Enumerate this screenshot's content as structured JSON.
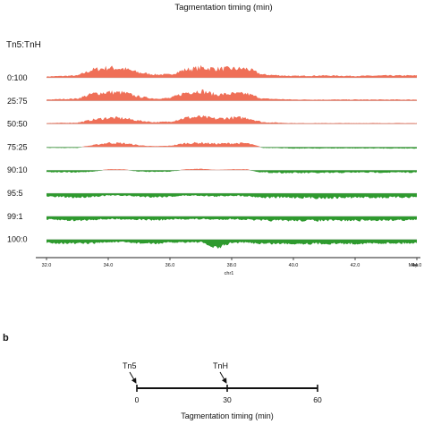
{
  "panel_a": {
    "header": "Tagmentation timing (min)",
    "ratio_label": "Tn5:TnH",
    "chromosome": "chr1",
    "axis_unit": "Mbp",
    "tick_labels": [
      "32.0",
      "34.0",
      "36.0",
      "38.0",
      "40.0",
      "42.0",
      "44.0"
    ]
  },
  "panel_b": {
    "panel_letter": "b",
    "xlabel": "Tagmentation timing (min)",
    "ticks": [
      "0",
      "30",
      "60"
    ],
    "events": [
      {
        "label": "Tn5",
        "time": 0
      },
      {
        "label": "TnH",
        "time": 30
      }
    ]
  },
  "colors": {
    "positive": "#ef6f57",
    "negative": "#2e9a2e",
    "axis": "#222222"
  },
  "chart_data": [
    {
      "type": "area",
      "title": "",
      "xlabel": "chr1",
      "x_unit": "Mbp",
      "xlim": [
        32.0,
        44.0
      ],
      "xticks": [
        32.0,
        34.0,
        36.0,
        38.0,
        40.0,
        42.0,
        44.0
      ],
      "x": [
        32.0,
        33.0,
        33.5,
        34.0,
        34.5,
        35.0,
        35.5,
        36.0,
        36.5,
        37.0,
        37.5,
        38.0,
        38.5,
        39.0,
        40.0,
        41.0,
        42.0,
        43.0,
        44.0
      ],
      "series": [
        {
          "name": "0:100",
          "values": [
            0.1,
            0.2,
            0.8,
            1.0,
            0.9,
            0.5,
            0.3,
            0.3,
            0.8,
            1.0,
            0.9,
            0.9,
            0.9,
            0.3,
            0.15,
            0.2,
            0.15,
            0.2,
            0.2
          ]
        },
        {
          "name": "25:75",
          "values": [
            0.1,
            0.2,
            0.7,
            0.85,
            0.8,
            0.4,
            0.2,
            0.25,
            0.8,
            1.0,
            0.6,
            0.7,
            0.7,
            0.2,
            0.1,
            0.1,
            0.1,
            0.1,
            0.1
          ]
        },
        {
          "name": "50:50",
          "values": [
            0.05,
            0.1,
            0.4,
            0.6,
            0.55,
            0.3,
            0.15,
            0.2,
            0.6,
            0.7,
            0.5,
            0.6,
            0.6,
            0.15,
            0.05,
            0.05,
            0.05,
            0.05,
            0.05
          ]
        },
        {
          "name": "75:25",
          "values": [
            -0.05,
            -0.05,
            0.15,
            0.4,
            0.35,
            0.15,
            0.05,
            0.1,
            0.35,
            0.4,
            0.3,
            0.35,
            0.35,
            -0.05,
            -0.1,
            -0.1,
            -0.1,
            -0.1,
            -0.1
          ]
        },
        {
          "name": "90:10",
          "values": [
            -0.15,
            -0.2,
            -0.1,
            0.05,
            0.05,
            -0.1,
            -0.15,
            -0.1,
            0.05,
            0.1,
            0.0,
            0.05,
            0.05,
            -0.2,
            -0.25,
            -0.25,
            -0.2,
            -0.2,
            -0.2
          ]
        },
        {
          "name": "95:5",
          "values": [
            -0.3,
            -0.4,
            -0.3,
            -0.2,
            -0.2,
            -0.3,
            -0.35,
            -0.3,
            -0.2,
            -0.2,
            -0.3,
            -0.2,
            -0.25,
            -0.4,
            -0.4,
            -0.45,
            -0.4,
            -0.4,
            -0.35
          ]
        },
        {
          "name": "99:1",
          "values": [
            -0.3,
            -0.4,
            -0.3,
            -0.25,
            -0.25,
            -0.3,
            -0.35,
            -0.3,
            -0.25,
            -0.25,
            -0.3,
            -0.25,
            -0.3,
            -0.4,
            -0.4,
            -0.4,
            -0.4,
            -0.35,
            -0.35
          ]
        },
        {
          "name": "100:0",
          "values": [
            -0.3,
            -0.4,
            -0.35,
            -0.25,
            -0.25,
            -0.35,
            -0.4,
            -0.3,
            -0.25,
            -0.25,
            -0.9,
            -0.3,
            -0.3,
            -0.4,
            -0.4,
            -0.4,
            -0.4,
            -0.35,
            -0.35
          ]
        }
      ]
    },
    {
      "type": "line",
      "title": "",
      "xlabel": "Tagmentation timing (min)",
      "ylabel": "",
      "xlim": [
        0,
        60
      ],
      "xticks": [
        0,
        30,
        60
      ],
      "annotations": [
        {
          "label": "Tn5",
          "x": 0
        },
        {
          "label": "TnH",
          "x": 30
        }
      ]
    }
  ]
}
